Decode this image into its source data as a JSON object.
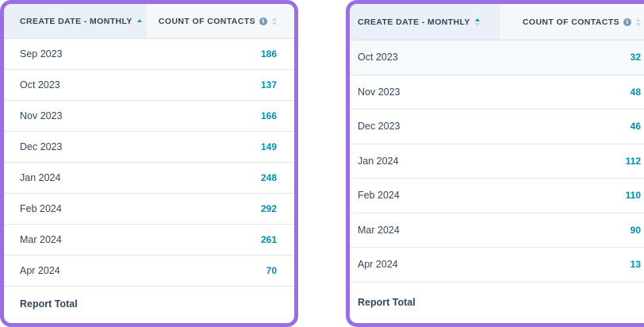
{
  "left": {
    "headers": {
      "date": "CREATE DATE - MONTHLY",
      "count": "COUNT OF CONTACTS"
    },
    "rows": [
      {
        "month": "Sep 2023",
        "count": "186"
      },
      {
        "month": "Oct 2023",
        "count": "137"
      },
      {
        "month": "Nov 2023",
        "count": "166"
      },
      {
        "month": "Dec 2023",
        "count": "149"
      },
      {
        "month": "Jan 2024",
        "count": "248"
      },
      {
        "month": "Feb 2024",
        "count": "292"
      },
      {
        "month": "Mar 2024",
        "count": "261"
      },
      {
        "month": "Apr 2024",
        "count": "70"
      }
    ],
    "total_label": "Report Total"
  },
  "right": {
    "headers": {
      "date": "CREATE DATE - MONTHLY",
      "count": "COUNT OF CONTACTS"
    },
    "rows": [
      {
        "month": "Oct 2023",
        "count": "32"
      },
      {
        "month": "Nov 2023",
        "count": "48"
      },
      {
        "month": "Dec 2023",
        "count": "46"
      },
      {
        "month": "Jan 2024",
        "count": "112"
      },
      {
        "month": "Feb 2024",
        "count": "110"
      },
      {
        "month": "Mar 2024",
        "count": "90"
      },
      {
        "month": "Apr 2024",
        "count": "13"
      }
    ],
    "total_label": "Report Total"
  },
  "colors": {
    "frame": "#9b6fe4",
    "value": "#0091ae",
    "sort_active": "#00a4bd"
  }
}
